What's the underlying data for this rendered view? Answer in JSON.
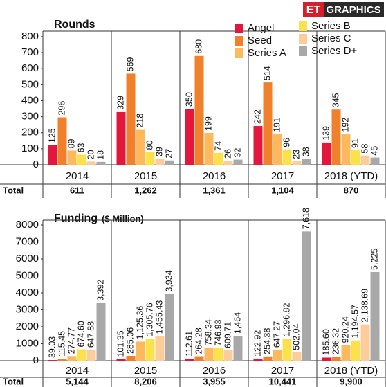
{
  "header": {
    "brand": "ET",
    "label": "GRAPHICS"
  },
  "chart_data": [
    {
      "type": "bar",
      "title": "Rounds",
      "categories": [
        "2014",
        "2015",
        "2016",
        "2017",
        "2018 (YTD)"
      ],
      "series": [
        {
          "name": "Angel",
          "color": "#e3173e",
          "values": [
            125,
            329,
            350,
            242,
            139
          ]
        },
        {
          "name": "Seed",
          "color": "#f0812a",
          "values": [
            296,
            569,
            680,
            514,
            345
          ]
        },
        {
          "name": "Series A",
          "color": "#fdb95c",
          "values": [
            89,
            218,
            199,
            191,
            192
          ]
        },
        {
          "name": "Series B",
          "color": "#fde14a",
          "values": [
            63,
            80,
            74,
            96,
            91
          ]
        },
        {
          "name": "Series C",
          "color": "#fccc9a",
          "values": [
            20,
            39,
            26,
            23,
            58
          ]
        },
        {
          "name": "Series D+",
          "color": "#a8a8a8",
          "values": [
            18,
            27,
            32,
            38,
            45
          ]
        }
      ],
      "ylim": [
        0,
        800
      ],
      "yticks": [
        0,
        100,
        200,
        300,
        400,
        500,
        600,
        700,
        800
      ],
      "total_label": "Total",
      "totals": [
        "611",
        "1,262",
        "1,361",
        "1,104",
        "870"
      ]
    },
    {
      "type": "bar",
      "title": "Funding",
      "subtitle": "($ Million)",
      "categories": [
        "2014",
        "2015",
        "2016",
        "2017",
        "2018 (YTD)"
      ],
      "series": [
        {
          "color": "#e3173e",
          "values": [
            39.03,
            101.35,
            112.61,
            122.92,
            185.6
          ],
          "value_labels": [
            "39.03",
            "101.35",
            "112.61",
            "122.92",
            "185.60"
          ]
        },
        {
          "color": "#f0812a",
          "values": [
            115.45,
            285.06,
            264.28,
            254.38,
            236.32
          ],
          "value_labels": [
            "115.45",
            "285.06",
            "264.28",
            "254.38",
            "236.32"
          ]
        },
        {
          "color": "#fdb95c",
          "values": [
            274.77,
            1125.36,
            758.34,
            647.27,
            920.24
          ],
          "value_labels": [
            "274.77",
            "1,125.36",
            "758.34",
            "647.27",
            "920.24"
          ]
        },
        {
          "color": "#fde14a",
          "values": [
            674.6,
            1305.76,
            746.93,
            1296.82,
            1194.57
          ],
          "value_labels": [
            "674.60",
            "1,305.76",
            "746.93",
            "1,296.82",
            "1,194.57"
          ]
        },
        {
          "color": "#fccc9a",
          "values": [
            647.88,
            1455.43,
            609.71,
            502.04,
            2138.69
          ],
          "value_labels": [
            "647.88",
            "1,455.43",
            "609.71",
            "502.04",
            "2,138.69"
          ]
        },
        {
          "color": "#a8a8a8",
          "values": [
            3392,
            3934,
            1464,
            7618,
            5225
          ],
          "value_labels": [
            "3,392",
            "3,934",
            "1,464",
            "7,618",
            "5,225"
          ]
        }
      ],
      "ylim": [
        0,
        8000
      ],
      "yticks": [
        0,
        1000,
        2000,
        3000,
        4000,
        5000,
        6000,
        7000,
        8000
      ],
      "total_label": "Total",
      "totals": [
        "5,144",
        "8,206",
        "3,955",
        "10,441",
        "9,900"
      ]
    }
  ]
}
